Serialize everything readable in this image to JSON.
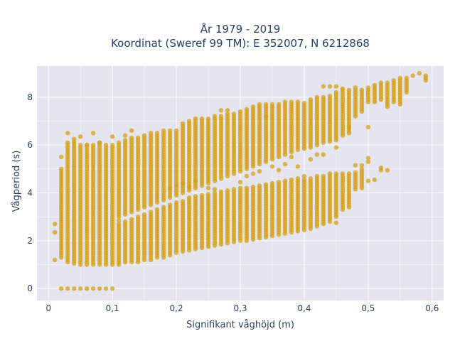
{
  "chart_data": {
    "type": "scatter",
    "title_line1": "År 1979 - 2019",
    "title_line2": "Koordinat (Sweref 99 TM): E 352007, N 6212868",
    "xlabel": "Signifikant våghöjd (m)",
    "ylabel": "Vågperiod (s)",
    "xlim": [
      -0.018,
      0.618
    ],
    "ylim": [
      -0.5,
      9.3
    ],
    "x_ticks": [
      0,
      0.1,
      0.2,
      0.3,
      0.4,
      0.5,
      0.6
    ],
    "x_tick_labels": [
      "0",
      "0,1",
      "0,2",
      "0,3",
      "0,4",
      "0,5",
      "0,6"
    ],
    "y_ticks": [
      0,
      2,
      4,
      6,
      8
    ],
    "y_tick_labels": [
      "0",
      "2",
      "4",
      "6",
      "8"
    ],
    "grid": true,
    "plot_bg": "#e5e5ef",
    "marker_color": "#d4a017",
    "x_step": 0.01,
    "columns": [
      {
        "x": 0.01,
        "ranges": [
          [
            1.2,
            1.2
          ]
        ],
        "points": [
          2.35,
          2.7
        ]
      },
      {
        "x": 0.02,
        "ranges": [
          [
            0,
            0
          ],
          [
            1.3,
            5.0
          ]
        ],
        "points": [
          5.5
        ]
      },
      {
        "x": 0.03,
        "ranges": [
          [
            0,
            0
          ],
          [
            1.1,
            6.1
          ]
        ],
        "points": [
          6.5
        ]
      },
      {
        "x": 0.04,
        "ranges": [
          [
            0,
            0
          ],
          [
            1.05,
            6.2
          ]
        ],
        "points": [
          6.25
        ]
      },
      {
        "x": 0.05,
        "ranges": [
          [
            0,
            0
          ],
          [
            1.0,
            6.0
          ]
        ],
        "points": [
          6.35
        ]
      },
      {
        "x": 0.06,
        "ranges": [
          [
            0,
            0
          ],
          [
            1.0,
            6.0
          ]
        ],
        "points": [
          6.0
        ]
      },
      {
        "x": 0.07,
        "ranges": [
          [
            0,
            0
          ],
          [
            1.0,
            6.0
          ]
        ],
        "points": [
          6.5
        ]
      },
      {
        "x": 0.08,
        "ranges": [
          [
            0,
            0
          ],
          [
            1.0,
            6.1
          ]
        ],
        "points": [
          6.1
        ]
      },
      {
        "x": 0.09,
        "ranges": [
          [
            0,
            0
          ],
          [
            1.0,
            6.0
          ]
        ],
        "points": []
      },
      {
        "x": 0.1,
        "ranges": [
          [
            0,
            0
          ],
          [
            1.0,
            6.0
          ]
        ],
        "points": [
          6.35
        ]
      },
      {
        "x": 0.11,
        "ranges": [
          [
            1.0,
            2.7
          ],
          [
            3.0,
            6.1
          ]
        ],
        "points": [
          2.85
        ]
      },
      {
        "x": 0.12,
        "ranges": [
          [
            1.1,
            2.8
          ],
          [
            3.1,
            6.2
          ]
        ],
        "points": [
          6.4
        ]
      },
      {
        "x": 0.13,
        "ranges": [
          [
            1.1,
            2.9
          ],
          [
            3.2,
            6.3
          ]
        ],
        "points": [
          6.6
        ]
      },
      {
        "x": 0.14,
        "ranges": [
          [
            1.1,
            3.0
          ],
          [
            3.3,
            6.3
          ]
        ],
        "points": []
      },
      {
        "x": 0.15,
        "ranges": [
          [
            1.2,
            3.1
          ],
          [
            3.4,
            6.4
          ]
        ],
        "points": []
      },
      {
        "x": 0.16,
        "ranges": [
          [
            1.2,
            3.2
          ],
          [
            3.5,
            6.5
          ]
        ],
        "points": []
      },
      {
        "x": 0.17,
        "ranges": [
          [
            1.3,
            3.3
          ],
          [
            3.6,
            6.5
          ]
        ],
        "points": []
      },
      {
        "x": 0.18,
        "ranges": [
          [
            1.3,
            3.4
          ],
          [
            3.7,
            6.6
          ]
        ],
        "points": []
      },
      {
        "x": 0.19,
        "ranges": [
          [
            1.4,
            3.5
          ],
          [
            3.8,
            6.6
          ]
        ],
        "points": [
          4.2
        ]
      },
      {
        "x": 0.2,
        "ranges": [
          [
            1.5,
            3.6
          ],
          [
            3.9,
            6.6
          ]
        ],
        "points": [
          4.3
        ]
      },
      {
        "x": 0.21,
        "ranges": [
          [
            1.55,
            3.7
          ],
          [
            4.0,
            6.9
          ]
        ],
        "points": [
          4.4
        ]
      },
      {
        "x": 0.22,
        "ranges": [
          [
            1.6,
            3.8
          ],
          [
            4.1,
            7.0
          ]
        ],
        "points": [
          4.25
        ]
      },
      {
        "x": 0.23,
        "ranges": [
          [
            1.65,
            3.85
          ],
          [
            4.2,
            7.1
          ]
        ],
        "points": [
          4.5
        ]
      },
      {
        "x": 0.24,
        "ranges": [
          [
            1.7,
            3.9
          ],
          [
            4.3,
            7.1
          ]
        ],
        "points": []
      },
      {
        "x": 0.25,
        "ranges": [
          [
            1.75,
            3.95
          ],
          [
            4.4,
            7.1
          ]
        ],
        "points": [
          4.2
        ]
      },
      {
        "x": 0.26,
        "ranges": [
          [
            1.8,
            4.0
          ],
          [
            4.5,
            7.2
          ]
        ],
        "points": [
          4.15
        ]
      },
      {
        "x": 0.27,
        "ranges": [
          [
            1.85,
            4.05
          ],
          [
            4.6,
            7.2
          ]
        ],
        "points": [
          7.45
        ]
      },
      {
        "x": 0.28,
        "ranges": [
          [
            1.9,
            4.1
          ],
          [
            4.7,
            7.3
          ]
        ],
        "points": [
          7.45
        ]
      },
      {
        "x": 0.29,
        "ranges": [
          [
            1.95,
            4.15
          ],
          [
            4.8,
            7.3
          ]
        ],
        "points": []
      },
      {
        "x": 0.3,
        "ranges": [
          [
            2.0,
            4.2
          ],
          [
            4.9,
            7.4
          ]
        ],
        "points": [
          4.45
        ]
      },
      {
        "x": 0.31,
        "ranges": [
          [
            2.0,
            4.2
          ],
          [
            5.0,
            7.5
          ]
        ],
        "points": [
          4.7
        ]
      },
      {
        "x": 0.32,
        "ranges": [
          [
            2.05,
            4.25
          ],
          [
            5.1,
            7.6
          ]
        ],
        "points": [
          4.8
        ]
      },
      {
        "x": 0.33,
        "ranges": [
          [
            2.1,
            4.3
          ],
          [
            5.2,
            7.7
          ]
        ],
        "points": [
          4.9
        ]
      },
      {
        "x": 0.34,
        "ranges": [
          [
            2.15,
            4.35
          ],
          [
            5.3,
            7.7
          ]
        ],
        "points": [
          7.2
        ]
      },
      {
        "x": 0.35,
        "ranges": [
          [
            2.2,
            4.4
          ],
          [
            5.4,
            7.7
          ]
        ],
        "points": [
          5.1
        ]
      },
      {
        "x": 0.36,
        "ranges": [
          [
            2.25,
            4.45
          ],
          [
            5.5,
            7.7
          ]
        ],
        "points": [
          4.95
        ]
      },
      {
        "x": 0.37,
        "ranges": [
          [
            2.3,
            4.5
          ],
          [
            5.6,
            7.8
          ]
        ],
        "points": [
          5.2
        ]
      },
      {
        "x": 0.38,
        "ranges": [
          [
            2.35,
            4.55
          ],
          [
            5.7,
            7.8
          ]
        ],
        "points": [
          5.5
        ]
      },
      {
        "x": 0.39,
        "ranges": [
          [
            2.4,
            4.6
          ],
          [
            5.8,
            7.8
          ]
        ],
        "points": [
          5.1
        ]
      },
      {
        "x": 0.4,
        "ranges": [
          [
            2.45,
            4.6
          ],
          [
            5.85,
            7.8
          ]
        ],
        "points": [
          4.7
        ]
      },
      {
        "x": 0.41,
        "ranges": [
          [
            2.5,
            4.65
          ],
          [
            5.9,
            7.9
          ]
        ],
        "points": [
          5.4
        ]
      },
      {
        "x": 0.42,
        "ranges": [
          [
            2.6,
            4.7
          ],
          [
            6.0,
            8.0
          ]
        ],
        "points": [
          5.6
        ]
      },
      {
        "x": 0.43,
        "ranges": [
          [
            2.7,
            4.75
          ],
          [
            6.1,
            8.0
          ]
        ],
        "points": [
          5.6,
          8.45
        ]
      },
      {
        "x": 0.44,
        "ranges": [
          [
            2.8,
            4.8
          ],
          [
            6.15,
            8.1
          ]
        ],
        "points": [
          8.45
        ]
      },
      {
        "x": 0.45,
        "ranges": [
          [
            3.0,
            4.8
          ],
          [
            6.2,
            8.2
          ]
        ],
        "points": [
          2.75,
          5.9,
          8.45
        ]
      },
      {
        "x": 0.46,
        "ranges": [
          [
            3.3,
            4.8
          ],
          [
            6.4,
            8.3
          ]
        ],
        "points": [
          8.35
        ]
      },
      {
        "x": 0.47,
        "ranges": [
          [
            3.4,
            4.85
          ],
          [
            6.5,
            8.3
          ]
        ],
        "points": [
          6.75
        ]
      },
      {
        "x": 0.48,
        "ranges": [
          [
            4.15,
            4.9
          ],
          [
            7.2,
            8.4
          ]
        ],
        "points": [
          5.15
        ]
      },
      {
        "x": 0.49,
        "ranges": [
          [
            4.2,
            5.0
          ],
          [
            7.4,
            8.3
          ]
        ],
        "points": [
          5.15
        ]
      },
      {
        "x": 0.5,
        "ranges": [
          [
            7.8,
            8.4
          ]
        ],
        "points": [
          4.5,
          5.3,
          5.45,
          6.75
        ]
      },
      {
        "x": 0.51,
        "ranges": [
          [
            7.8,
            8.5
          ]
        ],
        "points": [
          4.55
        ]
      },
      {
        "x": 0.52,
        "ranges": [
          [
            7.9,
            8.6
          ]
        ],
        "points": [
          4.95,
          5.05
        ]
      },
      {
        "x": 0.53,
        "ranges": [
          [
            7.6,
            8.6
          ]
        ],
        "points": [
          4.95
        ]
      },
      {
        "x": 0.54,
        "ranges": [
          [
            7.8,
            8.7
          ]
        ],
        "points": []
      },
      {
        "x": 0.55,
        "ranges": [
          [
            7.7,
            8.8
          ]
        ],
        "points": []
      },
      {
        "x": 0.56,
        "ranges": [
          [
            8.2,
            8.8
          ]
        ],
        "points": []
      },
      {
        "x": 0.57,
        "ranges": [
          [
            8.9,
            8.9
          ]
        ],
        "points": []
      },
      {
        "x": 0.58,
        "ranges": [
          [
            9.0,
            9.0
          ]
        ],
        "points": []
      },
      {
        "x": 0.59,
        "ranges": [
          [
            8.7,
            8.9
          ]
        ],
        "points": []
      }
    ]
  }
}
